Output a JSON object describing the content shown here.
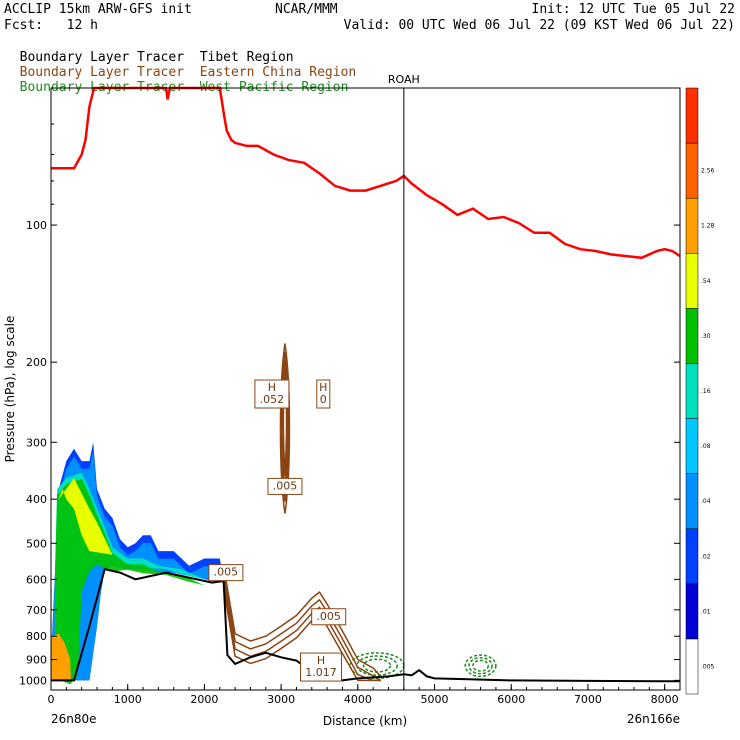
{
  "header": {
    "model": "ACCLIP 15km ARW-GFS init",
    "org": "NCAR/MMM",
    "init": "Init: 12 UTC Tue 05 Jul 22",
    "fcst": "Fcst:   12 h",
    "valid": "Valid: 00 UTC Wed 06 Jul 22 (09 KST Wed 06 Jul 22)",
    "tracers": [
      {
        "prefix": "Boundary Layer Tracer",
        "region": "Tibet Region",
        "color": "#000000"
      },
      {
        "prefix": "Boundary Layer Tracer",
        "region": "Eastern China Region",
        "color": "#8b4513"
      },
      {
        "prefix": "Boundary Layer Tracer",
        "region": "West Pacific Region",
        "color": "#1e8b1e"
      }
    ]
  },
  "chart_data": {
    "type": "cross-section",
    "xlabel": "Distance (km)",
    "ylabel": "Pressure (hPa), log scale",
    "xlim": [
      0,
      8200
    ],
    "ylim_hpa": [
      1050,
      50
    ],
    "y_log_scale": true,
    "x_ticks": [
      "0",
      "1000",
      "2000",
      "3000",
      "4000",
      "5000",
      "6000",
      "7000",
      "8000"
    ],
    "y_ticks": [
      "100",
      "200",
      "300",
      "400",
      "500",
      "600",
      "700",
      "800",
      "900",
      "1000"
    ],
    "start_label": "26n80e",
    "end_label": "26n166e",
    "marker": {
      "label": "ROAH",
      "x_km": 4600
    },
    "tropopause": {
      "color": "#ff0000",
      "x": [
        0,
        300,
        400,
        450,
        500,
        560,
        650,
        1000,
        1500,
        1520,
        1550,
        2200,
        2260,
        2290,
        2350,
        2400,
        2550,
        2700,
        2900,
        3100,
        3300,
        3500,
        3700,
        3900,
        4100,
        4300,
        4500,
        4600,
        4700,
        4900,
        5100,
        5300,
        5500,
        5700,
        5900,
        6100,
        6300,
        6500,
        6700,
        6900,
        7100,
        7300,
        7500,
        7700,
        7900,
        8000,
        8100,
        8200
      ],
      "hpa": [
        75,
        75,
        70,
        65,
        55,
        50,
        50,
        50,
        50,
        53,
        50,
        50,
        58,
        62,
        65,
        66,
        67,
        67,
        70,
        72,
        73,
        77,
        82,
        84,
        84,
        82,
        80,
        78,
        81,
        86,
        90,
        95,
        92,
        97,
        96,
        99,
        104,
        104,
        110,
        113,
        114,
        116,
        117,
        118,
        114,
        113,
        114,
        117
      ]
    },
    "ground": {
      "color": "#000000",
      "x": [
        0,
        300,
        500,
        700,
        900,
        1100,
        1300,
        1500,
        1700,
        1900,
        2100,
        2250,
        2300,
        2400,
        2600,
        2800,
        3000,
        3200,
        3400,
        3600,
        3800,
        4000,
        4200,
        4400,
        4600,
        4700,
        4800,
        4900,
        5000,
        5500,
        6000,
        7000,
        8000,
        8200
      ],
      "hpa": [
        1000,
        1000,
        760,
        570,
        580,
        600,
        590,
        580,
        590,
        600,
        610,
        605,
        880,
        920,
        890,
        870,
        890,
        905,
        960,
        970,
        1000,
        990,
        985,
        980,
        970,
        975,
        950,
        980,
        990,
        995,
        1000,
        1003,
        1005,
        1005
      ]
    },
    "shading": {
      "unit": "fraction",
      "colorbar": [
        {
          "color": "#ffffff",
          "label": ".005"
        },
        {
          "color": "#0000d8",
          "label": ".01"
        },
        {
          "color": "#0040ff",
          "label": ".02"
        },
        {
          "color": "#0090ff",
          "label": ".04"
        },
        {
          "color": "#00c8ff",
          "label": ".08"
        },
        {
          "color": "#00e0c0",
          "label": ".16"
        },
        {
          "color": "#00c000",
          "label": ".30"
        },
        {
          "color": "#e8ff00",
          "label": ".54"
        },
        {
          "color": "#ffa000",
          "label": "1.28"
        },
        {
          "color": "#ff6000",
          "label": "2.56"
        },
        {
          "color": "#ff3000",
          "label": ""
        }
      ],
      "outer_x": [
        0,
        500,
        600,
        650,
        700,
        800,
        1000,
        1200,
        1400,
        1600,
        1800,
        2000,
        2200,
        2250,
        2200,
        2000,
        1800,
        1600,
        1400,
        1300,
        1200,
        1100,
        1000,
        900,
        800,
        700,
        600,
        550,
        500,
        400,
        300,
        200,
        100,
        0
      ],
      "outer_hpa": [
        1000,
        1000,
        760,
        640,
        570,
        560,
        570,
        570,
        580,
        580,
        590,
        600,
        610,
        600,
        540,
        540,
        560,
        520,
        520,
        480,
        480,
        500,
        510,
        490,
        440,
        420,
        380,
        300,
        330,
        330,
        310,
        330,
        380,
        900
      ],
      "core_x": [
        50,
        250,
        350,
        400,
        500,
        600,
        800,
        1000,
        1200,
        1500,
        1800,
        2000,
        1700,
        1400,
        1200,
        1000,
        800,
        700,
        600,
        500,
        400,
        200,
        80,
        50
      ],
      "core_hpa": [
        960,
        990,
        950,
        620,
        560,
        540,
        560,
        555,
        565,
        570,
        590,
        600,
        570,
        560,
        540,
        540,
        510,
        460,
        420,
        380,
        350,
        360,
        380,
        600
      ],
      "yellow_x": [
        100,
        300,
        500,
        600,
        800,
        500,
        400,
        300,
        200,
        150,
        100
      ],
      "yellow_hpa": [
        400,
        360,
        420,
        450,
        530,
        520,
        480,
        420,
        400,
        380,
        400
      ],
      "orange_x": [
        0,
        260,
        250,
        180,
        100,
        0
      ],
      "orange_hpa": [
        1000,
        1000,
        900,
        830,
        790,
        800
      ]
    },
    "eastern_china_contours": {
      "color": "#8b4513",
      "annotations": [
        {
          "text": "H\n.052",
          "x_km": 2880,
          "hpa": 235
        },
        {
          "text": "H\n0",
          "x_km": 3550,
          "hpa": 235
        },
        {
          "text": ".005",
          "x_km": 3050,
          "hpa": 375
        },
        {
          "text": ".005",
          "x_km": 2280,
          "hpa": 580
        },
        {
          "text": ".005",
          "x_km": 3620,
          "hpa": 725
        },
        {
          "text": "H\n1.017",
          "x_km": 3520,
          "hpa": 935
        }
      ]
    },
    "west_pacific_contours": {
      "color": "#1e8b1e",
      "regions": [
        {
          "x_km": [
            3900,
            4600
          ],
          "hpa": [
            870,
            990
          ]
        },
        {
          "x_km": [
            5400,
            5800
          ],
          "hpa": [
            880,
            980
          ]
        }
      ]
    }
  }
}
